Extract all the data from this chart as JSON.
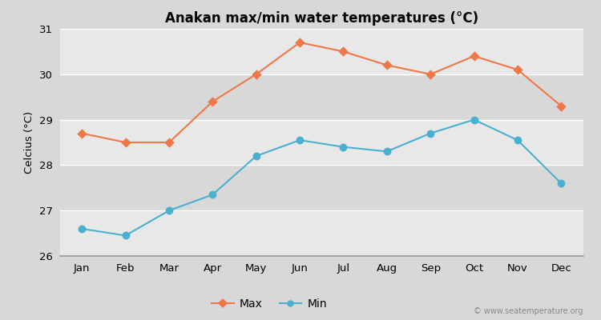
{
  "title": "Anakan max/min water temperatures (°C)",
  "ylabel": "Celcius (°C)",
  "months": [
    "Jan",
    "Feb",
    "Mar",
    "Apr",
    "May",
    "Jun",
    "Jul",
    "Aug",
    "Sep",
    "Oct",
    "Nov",
    "Dec"
  ],
  "max_temps": [
    28.7,
    28.5,
    28.5,
    29.4,
    30.0,
    30.7,
    30.5,
    30.2,
    30.0,
    30.4,
    30.1,
    29.3
  ],
  "min_temps": [
    26.6,
    26.45,
    27.0,
    27.35,
    28.2,
    28.55,
    28.4,
    28.3,
    28.7,
    29.0,
    28.55,
    27.6
  ],
  "max_color": "#f07848",
  "min_color": "#4ab0d0",
  "fig_bg_color": "#d8d8d8",
  "plot_bg_light": "#e8e8e8",
  "plot_bg_dark": "#d8d8d8",
  "grid_color": "#ffffff",
  "ylim": [
    26,
    31
  ],
  "yticks": [
    26,
    27,
    28,
    29,
    30,
    31
  ],
  "watermark": "© www.seatemperature.org",
  "legend_max": "Max",
  "legend_min": "Min"
}
